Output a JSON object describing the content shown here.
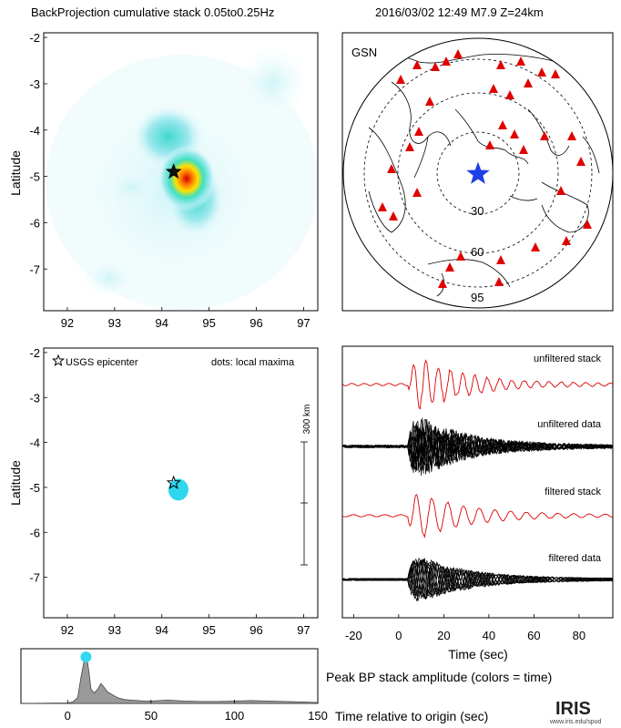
{
  "header": {
    "title_left": "BackProjection cumulative stack 0.05to0.25Hz",
    "title_right": "2016/03/02 12:49   M7.9  Z=24km"
  },
  "chart_data": [
    {
      "type": "heatmap",
      "panel": "top-left",
      "ylabel": "Latitude",
      "xticks": [
        92,
        93,
        94,
        95,
        96,
        97
      ],
      "yticks": [
        -2,
        -3,
        -4,
        -5,
        -6,
        -7
      ],
      "xlim": [
        91.5,
        97.3
      ],
      "ylim": [
        -7.9,
        -1.9
      ],
      "epicenter": {
        "lon": 94.25,
        "lat": -4.9
      },
      "hotspots": [
        {
          "lon": 94.3,
          "lat": -5.0,
          "intensity": 1.0
        },
        {
          "lon": 93.9,
          "lat": -4.5,
          "intensity": 0.45
        },
        {
          "lon": 94.4,
          "lat": -5.7,
          "intensity": 0.35
        }
      ]
    },
    {
      "type": "map",
      "panel": "top-right",
      "network": "GSN",
      "ring_labels": [
        "30",
        "60",
        "95"
      ],
      "source_marker": "blue-star",
      "station_marker": "red-triangle"
    },
    {
      "type": "scatter",
      "panel": "middle-left",
      "ylabel": "Latitude",
      "xticks": [
        92,
        93,
        94,
        95,
        96,
        97
      ],
      "yticks": [
        -2,
        -3,
        -4,
        -5,
        -6,
        -7
      ],
      "xlim": [
        91.5,
        97.3
      ],
      "ylim": [
        -7.9,
        -1.9
      ],
      "legend_epicenter": "USGS epicenter",
      "legend_dots": "dots: local maxima",
      "scalebar_label": "300 km",
      "epicenter": {
        "lon": 94.25,
        "lat": -4.9
      },
      "maxima": [
        {
          "lon": 94.35,
          "lat": -5.05
        }
      ]
    },
    {
      "type": "line",
      "panel": "middle-right",
      "xlabel": "Time (sec)",
      "xticks": [
        -20,
        0,
        20,
        40,
        60,
        80
      ],
      "xlim": [
        -25,
        95
      ],
      "series": [
        {
          "name": "unfiltered stack",
          "color": "#dd0000"
        },
        {
          "name": "unfiltered data",
          "color": "#000000"
        },
        {
          "name": "filtered stack",
          "color": "#dd0000"
        },
        {
          "name": "filtered data",
          "color": "#000000"
        }
      ]
    },
    {
      "type": "area",
      "panel": "bottom",
      "xlabel": "Time relative to origin (sec)",
      "caption": "Peak BP stack amplitude (colors = time)",
      "xticks": [
        0,
        50,
        100,
        150
      ],
      "xlim": [
        -28,
        150
      ],
      "x": [
        -28,
        0,
        3,
        6,
        8,
        10,
        11,
        12,
        13,
        14,
        16,
        18,
        20,
        22,
        24,
        26,
        28,
        30,
        34,
        38,
        42,
        46,
        50,
        55,
        60,
        70,
        80,
        90,
        100,
        110,
        120,
        130,
        140,
        150
      ],
      "y": [
        0,
        0.01,
        0.03,
        0.12,
        0.55,
        0.92,
        0.98,
        0.85,
        0.6,
        0.3,
        0.22,
        0.3,
        0.42,
        0.33,
        0.24,
        0.2,
        0.16,
        0.12,
        0.08,
        0.07,
        0.06,
        0.05,
        0.05,
        0.06,
        0.07,
        0.05,
        0.04,
        0.04,
        0.05,
        0.06,
        0.05,
        0.04,
        0.03,
        0.02
      ]
    }
  ],
  "footer": {
    "logo_text": "IRIS",
    "logo_url_text": "www.iris.edu/spud"
  }
}
